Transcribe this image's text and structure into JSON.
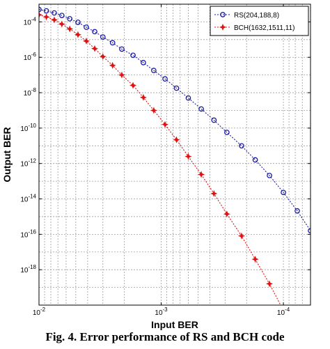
{
  "caption": "Fig. 4. Error performance of RS and BCH code",
  "chart_data": {
    "type": "line",
    "xlabel": "Input BER",
    "ylabel": "Output BER",
    "x_scale": "log",
    "y_scale": "log",
    "x_reversed": true,
    "xlim": [
      0.01,
      6e-05
    ],
    "ylim": [
      1e-20,
      0.001
    ],
    "grid": true,
    "legend_position": "top-right",
    "x_ticks": [
      {
        "value": 0.01,
        "mant": "10",
        "exp": "-2"
      },
      {
        "value": 0.001,
        "mant": "10",
        "exp": "-3"
      },
      {
        "value": 0.0001,
        "mant": "10",
        "exp": "-4"
      }
    ],
    "y_ticks": [
      {
        "value": 0.0001,
        "mant": "10",
        "exp": "-4"
      },
      {
        "value": 1e-06,
        "mant": "10",
        "exp": "-6"
      },
      {
        "value": 1e-08,
        "mant": "10",
        "exp": "-8"
      },
      {
        "value": 1e-10,
        "mant": "10",
        "exp": "-10"
      },
      {
        "value": 1e-12,
        "mant": "10",
        "exp": "-12"
      },
      {
        "value": 1e-14,
        "mant": "10",
        "exp": "-14"
      },
      {
        "value": 1e-16,
        "mant": "10",
        "exp": "-16"
      },
      {
        "value": 1e-18,
        "mant": "10",
        "exp": "-18"
      }
    ],
    "series": [
      {
        "name": "RS(204,188,8)",
        "color": "#1a1aa6",
        "marker": "circle",
        "line_style": "dotted",
        "x": [
          0.01,
          0.0087,
          0.0075,
          0.0065,
          0.0056,
          0.0048,
          0.0041,
          0.0035,
          0.003,
          0.0025,
          0.0021,
          0.0017,
          0.0014,
          0.00115,
          0.00093,
          0.00075,
          0.0006,
          0.00047,
          0.00037,
          0.00029,
          0.00022,
          0.00017,
          0.00013,
          0.0001,
          7.7e-05,
          6e-05
        ],
        "y": [
          0.0005,
          0.00042,
          0.00032,
          0.00023,
          0.00015,
          9.5e-05,
          5e-05,
          2.8e-05,
          1.4e-05,
          6.6e-06,
          2.9e-06,
          1.3e-06,
          5e-07,
          1.8e-07,
          6e-08,
          1.8e-08,
          5e-09,
          1.2e-09,
          2.8e-10,
          5.7e-11,
          1e-11,
          1.6e-12,
          2.1e-13,
          2.3e-14,
          2.1e-15,
          1.6e-16
        ]
      },
      {
        "name": "BCH(1632,1511,11)",
        "color": "#e01010",
        "marker": "star",
        "line_style": "dotted",
        "x": [
          0.01,
          0.0087,
          0.0075,
          0.0065,
          0.0056,
          0.0048,
          0.0041,
          0.0035,
          0.003,
          0.0025,
          0.0021,
          0.0017,
          0.0014,
          0.00115,
          0.00093,
          0.00075,
          0.0006,
          0.00047,
          0.00037,
          0.00029,
          0.00022,
          0.00017,
          0.00013,
          0.0001,
          7.7e-05
        ],
        "y": [
          0.00025,
          0.00019,
          0.00013,
          7.5e-05,
          4e-05,
          1.9e-05,
          8.3e-06,
          3.1e-06,
          1.1e-06,
          3.5e-07,
          1e-07,
          2.6e-08,
          5.4e-09,
          1e-09,
          1.6e-10,
          2.2e-11,
          2.5e-12,
          2.4e-13,
          2e-14,
          1.4e-15,
          8.1e-17,
          3.9e-18,
          1.6e-19,
          5e-21,
          1.3e-22
        ]
      }
    ]
  }
}
